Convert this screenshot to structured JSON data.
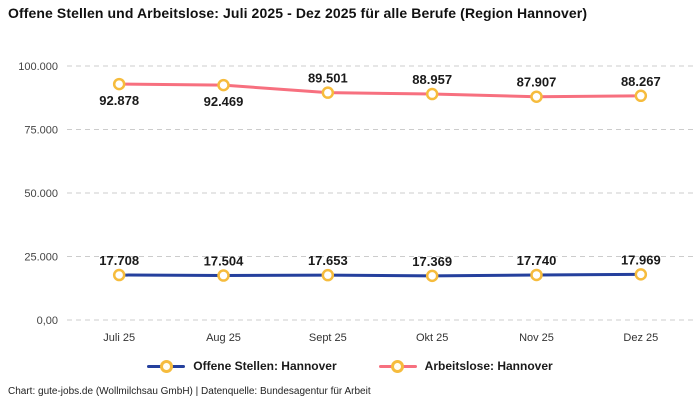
{
  "title": "Offene Stellen und Arbeitslose: Juli 2025 - Dez 2025 für alle Berufe (Region Hannover)",
  "footer": "Chart: gute-jobs.de (Wollmilchsau GmbH) | Datenquelle: Bundesagentur für Arbeit",
  "colors": {
    "background": "#ffffff",
    "grid": "#cccccc",
    "title_text": "#111111",
    "axis_text": "#444444",
    "data_label_text": "#1a1a1a",
    "marker_stroke": "#f6bc3d",
    "marker_fill": "#ffffff",
    "series_offene_stellen": "#25409d",
    "series_arbeitslose": "#f7707f"
  },
  "chart_data": {
    "type": "line",
    "title": "Offene Stellen und Arbeitslose: Juli 2025 - Dez 2025 für alle Berufe (Region Hannover)",
    "categories": [
      "Juli 25",
      "Aug 25",
      "Sept 25",
      "Okt 25",
      "Nov 25",
      "Dez 25"
    ],
    "ylim": [
      0,
      100000
    ],
    "yticks": [
      {
        "value": 100000,
        "label": "100.000"
      },
      {
        "value": 75000,
        "label": "75.000"
      },
      {
        "value": 50000,
        "label": "50.000"
      },
      {
        "value": 25000,
        "label": "25.000"
      },
      {
        "value": 0,
        "label": "0,00"
      }
    ],
    "grid": "horizontal-dashed",
    "legend_position": "bottom",
    "marker_style": {
      "shape": "circle-ring",
      "fill": "#ffffff",
      "stroke": "#f6bc3d"
    },
    "series": [
      {
        "name": "Offene Stellen: Hannover",
        "color": "#25409d",
        "values": [
          17708,
          17504,
          17653,
          17369,
          17740,
          17969
        ],
        "labels": [
          "17.708",
          "17.504",
          "17.653",
          "17.369",
          "17.740",
          "17.969"
        ],
        "label_side": [
          "above",
          "above",
          "above",
          "above",
          "above",
          "above"
        ]
      },
      {
        "name": "Arbeitslose: Hannover",
        "color": "#f7707f",
        "values": [
          92878,
          92469,
          89501,
          88957,
          87907,
          88267
        ],
        "labels": [
          "92.878",
          "92.469",
          "89.501",
          "88.957",
          "87.907",
          "88.267"
        ],
        "label_side": [
          "below",
          "below",
          "above",
          "above",
          "above",
          "above"
        ]
      }
    ]
  }
}
